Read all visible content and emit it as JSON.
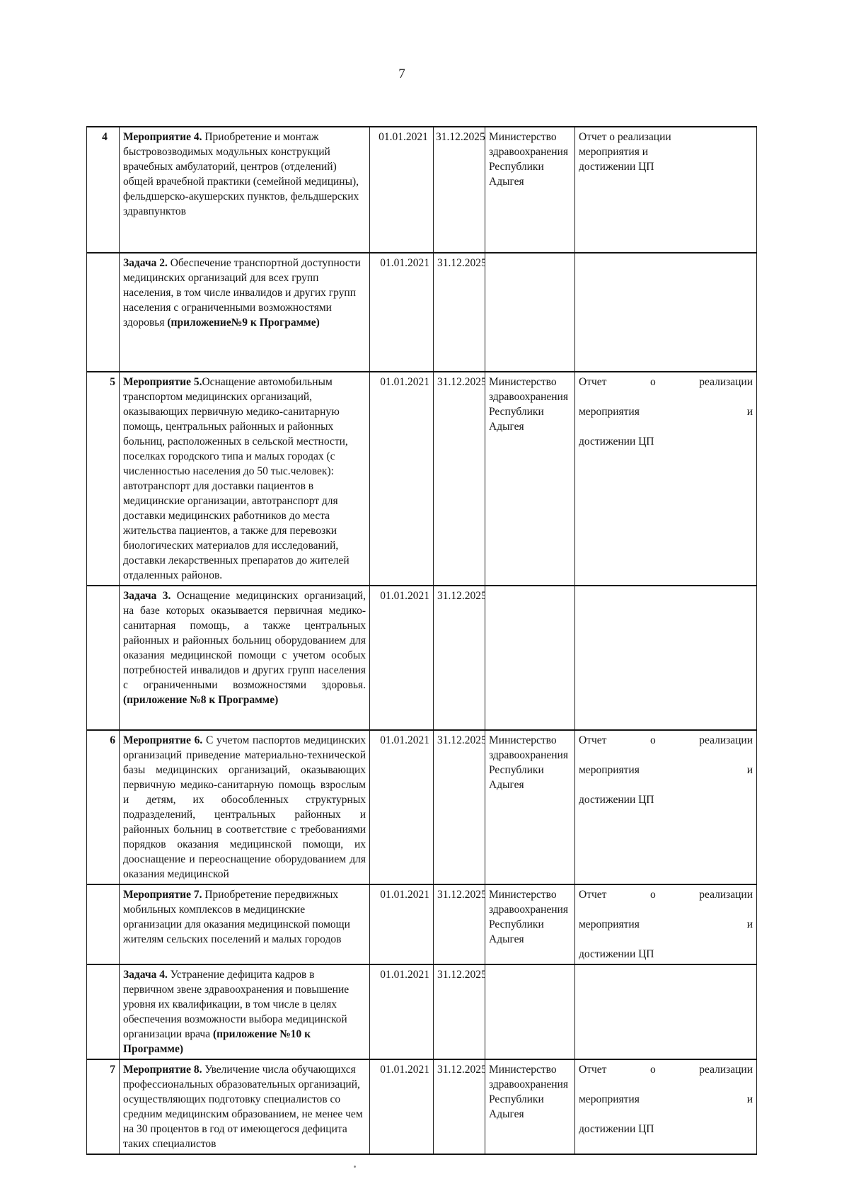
{
  "page": {
    "number": "7"
  },
  "table": {
    "rows": [
      {
        "num": "4",
        "activity_lead": "Мероприятие 4.",
        "activity_body": " Приобретение и монтаж быстровозводимых модульных конструкций врачебных амбулаторий, центров (отделений) общей врачебной практики (семейной медицины), фельдшерско-акушерских пунктов, фельдшерских здравпунктов",
        "activity_tail": "",
        "activity_justified": false,
        "start_date": "01.01.2021",
        "end_date": "31.12.2025",
        "executor_lines": [
          "Министерство",
          "здравоохранения",
          "Республики Адыгея"
        ],
        "result_lines": [
          "Отчет о реализации",
          "мероприятия и",
          "достижении ЦП"
        ],
        "result_justified": false
      },
      {
        "num": "",
        "activity_lead": "Задача 2.",
        "activity_body": " Обеспечение транспортной доступности медицинских организаций для всех групп населения, в том числе инвалидов и других групп населения с ограниченными возможностями здоровья ",
        "activity_tail": "(приложение№9 к Программе)",
        "activity_justified": false,
        "start_date": "01.01.2021",
        "end_date": "31.12.2025",
        "executor_lines": [],
        "result_lines": [],
        "result_justified": false
      },
      {
        "num": "5",
        "activity_lead": "Мероприятие 5.",
        "activity_body": "Оснащение автомобильным транспортом медицинских организаций, оказывающих первичную медико-санитарную помощь, центральных районных и районных больниц, расположенных в сельской местности, поселках городского типа и малых городах (с численностью населения до 50 тыс.человек): автотранспорт для доставки пациентов в медицинские организации, автотранспорт для доставки медицинских работников до места жительства пациентов, а также для перевозки биологических материалов для исследований, доставки лекарственных препаратов до жителей отдаленных районов.",
        "activity_tail": "",
        "activity_justified": false,
        "start_date": "01.01.2021",
        "end_date": "31.12.2025",
        "executor_lines": [
          "Министерство",
          "здравоохранения",
          "Республики Адыгея"
        ],
        "result_lines": [
          "Отчет о реализации",
          "мероприятия и",
          "достижении ЦП"
        ],
        "result_justified": true
      },
      {
        "num": "",
        "activity_lead": "Задача 3.",
        "activity_body": " Оснащение медицинских организаций, на базе которых оказывается первичная медико-санитарная помощь, а также центральных районных и районных больниц оборудованием для оказания медицинской помощи с учетом особых потребностей инвалидов и других групп населения с ограниченными возможностями здоровья. ",
        "activity_tail": "(приложение №8 к Программе)",
        "activity_justified": true,
        "start_date": "01.01.2021",
        "end_date": "31.12.2025",
        "executor_lines": [],
        "result_lines": [],
        "result_justified": false
      },
      {
        "num": "6",
        "activity_lead": "Мероприятие 6.",
        "activity_body": " С учетом паспортов медицинских организаций приведение материально-технической базы медицинских организаций, оказывающих первичную медико-санитарную помощь взрослым и детям, их обособленных структурных подразделений, центральных районных и районных больниц в соответствие с требованиями порядков оказания медицинской помощи, их дооснащение и переоснащение оборудованием для оказания медицинской",
        "activity_tail": "",
        "activity_justified": true,
        "start_date": "01.01.2021",
        "end_date": "31.12.2025",
        "executor_lines": [
          "Министерство",
          "здравоохранения",
          "Республики Адыгея"
        ],
        "result_lines": [
          "Отчет о реализации",
          "мероприятия и",
          "достижении ЦП"
        ],
        "result_justified": true
      },
      {
        "num": "",
        "activity_lead": "Мероприятие 7.",
        "activity_body": " Приобретение передвижных мобильных комплексов в медицинские организации для оказания медицинской помощи жителям сельских поселений и малых городов",
        "activity_tail": "",
        "activity_justified": false,
        "start_date": "01.01.2021",
        "end_date": "31.12.2025",
        "executor_lines": [
          "Министерство",
          "здравоохранения",
          "Республики Адыгея"
        ],
        "result_lines": [
          "Отчет о реализации",
          "мероприятия и",
          "достижении ЦП"
        ],
        "result_justified": true
      },
      {
        "num": "",
        "activity_lead": "Задача 4.",
        "activity_body": " Устранение дефицита кадров в первичном звене здравоохранения и повышение уровня их квалификации, в том числе в целях обеспечения возможности выбора медицинской организации врача ",
        "activity_tail": "(приложение №10 к Программе)",
        "activity_justified": false,
        "start_date": "01.01.2021",
        "end_date": "31.12.2025",
        "executor_lines": [],
        "result_lines": [],
        "result_justified": false
      },
      {
        "num": "7",
        "activity_lead": "Мероприятие 8.",
        "activity_body": " Увеличение числа обучающихся профессиональных образовательных организаций, осуществляющих подготовку специалистов со средним медицинским образованием, не менее чем на 30 процентов в год от имеющегося дефицита таких специалистов",
        "activity_tail": "",
        "activity_justified": false,
        "start_date": "01.01.2021",
        "end_date": "31.12.2025",
        "executor_lines": [
          "Министерство",
          "здравоохранения",
          "Республики Адыгея"
        ],
        "result_lines": [
          "Отчет о реализации",
          "мероприятия и",
          "достижении ЦП"
        ],
        "result_justified": true
      }
    ]
  }
}
